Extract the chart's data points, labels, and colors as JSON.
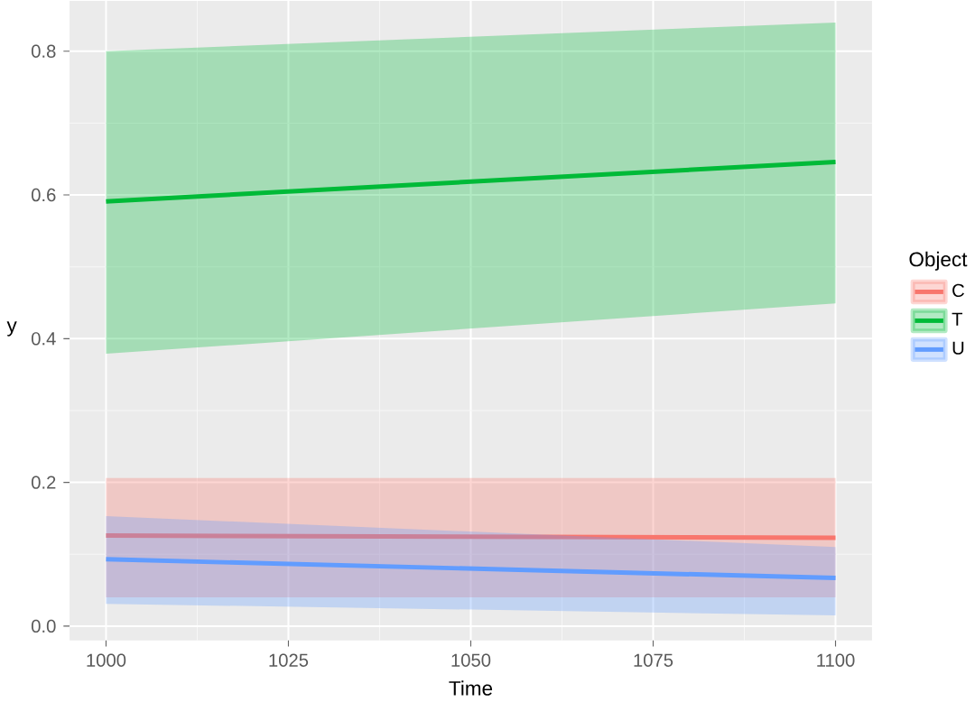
{
  "chart_data": {
    "type": "line",
    "xlabel": "Time",
    "ylabel": "y",
    "legend_title": "Object",
    "xlim": [
      995,
      1105
    ],
    "ylim": [
      -0.02,
      0.87
    ],
    "xticks": [
      1000,
      1025,
      1050,
      1075,
      1100
    ],
    "yticks": [
      {
        "value": 0,
        "label": "0.0"
      },
      0.2,
      0.4,
      0.6,
      0.8
    ],
    "grid": true,
    "legend": "right",
    "x": [
      1000,
      1100
    ],
    "series": [
      {
        "name": "C",
        "color": "#f8766d",
        "values": [
          0.126,
          0.123
        ],
        "lower": [
          0.04,
          0.04
        ],
        "upper": [
          0.206,
          0.206
        ]
      },
      {
        "name": "T",
        "color": "#00ba38",
        "values": [
          0.591,
          0.646
        ],
        "lower": [
          0.379,
          0.449
        ],
        "upper": [
          0.8,
          0.84
        ]
      },
      {
        "name": "U",
        "color": "#619cff",
        "values": [
          0.093,
          0.067
        ],
        "lower": [
          0.031,
          0.015
        ],
        "upper": [
          0.153,
          0.11
        ]
      }
    ]
  }
}
